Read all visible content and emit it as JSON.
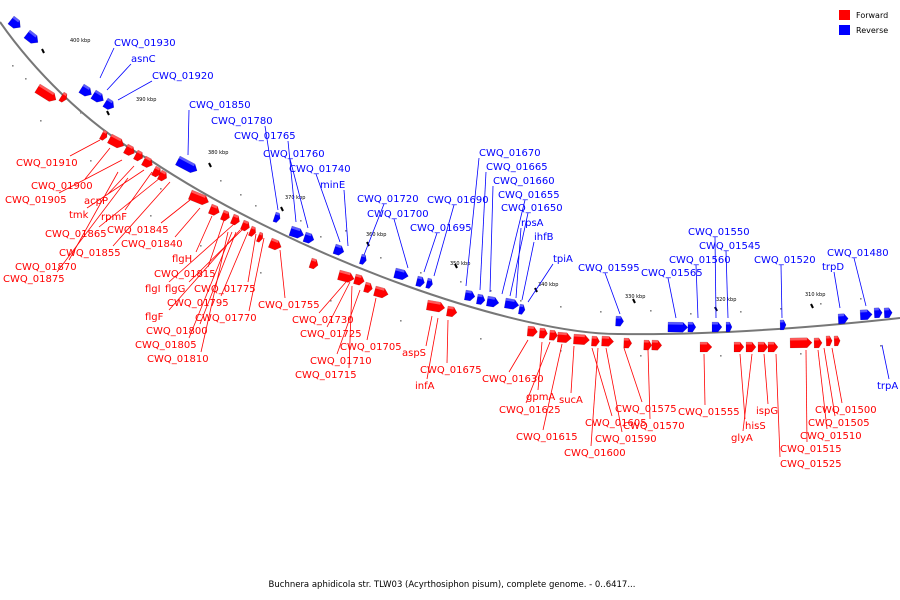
{
  "colors": {
    "forward": "#ff0000",
    "reverse": "#0000ff",
    "backbone": "#777777"
  },
  "legend": [
    {
      "label": "Forward",
      "color": "#ff0000"
    },
    {
      "label": "Reverse",
      "color": "#0000ff"
    }
  ],
  "caption": "Buchnera aphidicola str. TLW03 (Acyrthosiphon pisum), complete genome. - 0..6417...",
  "ticks": [
    "400 kbp",
    "390 kbp",
    "380 kbp",
    "370 kbp",
    "360 kbp",
    "350 kbp",
    "340 kbp",
    "330 kbp",
    "320 kbp",
    "310 kbp"
  ],
  "reverse_genes": [
    "CWQ_01930",
    "asnC",
    "CWQ_01920",
    "CWQ_01850",
    "CWQ_01780",
    "CWQ_01765",
    "CWQ_01760",
    "CWQ_01740",
    "minE",
    "CWQ_01720",
    "CWQ_01700",
    "CWQ_01695",
    "CWQ_01690",
    "CWQ_01670",
    "CWQ_01665",
    "CWQ_01660",
    "CWQ_01655",
    "CWQ_01650",
    "rpsA",
    "ihfB",
    "tpiA",
    "CWQ_01595",
    "CWQ_01565",
    "CWQ_01560",
    "CWQ_01550",
    "CWQ_01545",
    "CWQ_01520",
    "trpD",
    "CWQ_01480",
    "trpA"
  ],
  "forward_genes": [
    "CWQ_01910",
    "CWQ_01900",
    "CWQ_01905",
    "acpP",
    "tmk",
    "rpmF",
    "CWQ_01865",
    "CWQ_01845",
    "CWQ_01840",
    "CWQ_01855",
    "CWQ_01870",
    "CWQ_01875",
    "flgH",
    "CWQ_01815",
    "flgI",
    "flgG",
    "CWQ_01775",
    "CWQ_01795",
    "flgF",
    "CWQ_01770",
    "CWQ_01800",
    "CWQ_01805",
    "CWQ_01810",
    "CWQ_01755",
    "CWQ_01730",
    "CWQ_01725",
    "CWQ_01705",
    "CWQ_01710",
    "CWQ_01715",
    "aspS",
    "CWQ_01675",
    "infA",
    "CWQ_01630",
    "gpmA",
    "CWQ_01625",
    "sucA",
    "CWQ_01615",
    "CWQ_01605",
    "CWQ_01600",
    "CWQ_01590",
    "CWQ_01575",
    "CWQ_01570",
    "CWQ_01555",
    "hisS",
    "glyA",
    "ispG",
    "CWQ_01500",
    "CWQ_01505",
    "CWQ_01510",
    "CWQ_01515",
    "CWQ_01525"
  ]
}
